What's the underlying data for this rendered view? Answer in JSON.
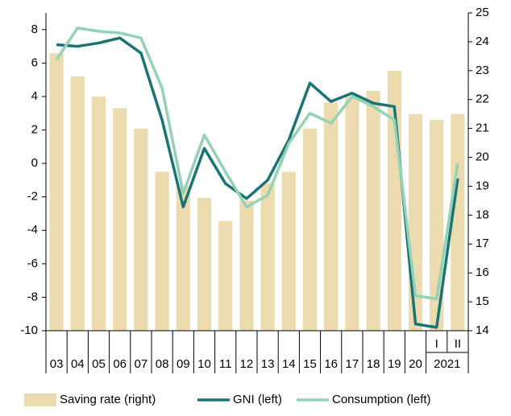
{
  "chart_data": {
    "type": "bar_line",
    "categories": [
      "03",
      "04",
      "05",
      "06",
      "07",
      "08",
      "09",
      "10",
      "11",
      "12",
      "13",
      "14",
      "15",
      "16",
      "17",
      "18",
      "19",
      "20",
      "I",
      "II"
    ],
    "category_groups": [
      {
        "label": "2021",
        "from": 18,
        "to": 19
      }
    ],
    "series": [
      {
        "name": "Saving rate (right)",
        "kind": "bar",
        "axis": "y2",
        "color": "#eddbb0",
        "values": [
          23.6,
          22.8,
          22.1,
          21.7,
          21.0,
          19.5,
          19.0,
          18.6,
          17.8,
          18.5,
          19.1,
          19.5,
          21.0,
          21.9,
          22.1,
          22.3,
          23.0,
          21.5,
          21.3,
          21.5
        ]
      },
      {
        "name": "GNI (left)",
        "kind": "line",
        "color": "#1b7474",
        "values": [
          7.1,
          7.0,
          7.2,
          7.5,
          6.6,
          2.6,
          -2.6,
          0.9,
          -1.2,
          -2.1,
          -1.0,
          1.4,
          4.8,
          3.7,
          4.2,
          3.6,
          3.4,
          -9.6,
          -9.8,
          -0.9
        ]
      },
      {
        "name": "Consumption (left)",
        "kind": "line",
        "color": "#93d2b4",
        "values": [
          6.2,
          8.1,
          7.9,
          7.8,
          7.5,
          4.5,
          -1.8,
          1.7,
          -0.5,
          -2.6,
          -1.9,
          1.2,
          3.0,
          2.4,
          4.0,
          3.4,
          2.6,
          -7.9,
          -8.1,
          0.0
        ]
      }
    ],
    "ylim": [
      -10,
      9
    ],
    "yticks": [
      -10,
      -8,
      -6,
      -4,
      -2,
      0,
      2,
      4,
      6,
      8
    ],
    "y2lim": [
      14,
      25
    ],
    "y2ticks": [
      14,
      15,
      16,
      17,
      18,
      19,
      20,
      21,
      22,
      23,
      24,
      25
    ],
    "legend": "bottom"
  }
}
